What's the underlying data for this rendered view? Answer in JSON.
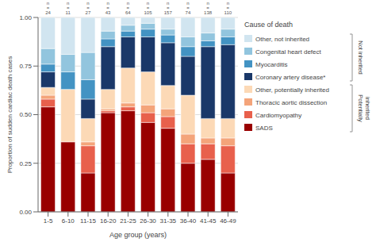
{
  "chart_data": {
    "type": "bar",
    "stacked": true,
    "grid": true,
    "legend": "right",
    "legend_title": "Cause of death",
    "x_label": "Age group (years)",
    "y_label": "Proportion of sudden cardiac death cases",
    "categories": [
      "1-5",
      "6-10",
      "11-15",
      "16-20",
      "21-25",
      "26-30",
      "31-35",
      "36-40",
      "41-45",
      "46-49"
    ],
    "series": [
      {
        "name": "SADS",
        "color": "#990000",
        "values": [
          0.54,
          0.36,
          0.2,
          0.51,
          0.52,
          0.46,
          0.43,
          0.25,
          0.27,
          0.2
        ]
      },
      {
        "name": "Cardiomyopathy",
        "color": "#e8604c",
        "values": [
          0.04,
          0.0,
          0.14,
          0.01,
          0.02,
          0.05,
          0.06,
          0.1,
          0.08,
          0.14
        ]
      },
      {
        "name": "Thoracic aortic dissection",
        "color": "#f4a47a",
        "values": [
          0.02,
          0.0,
          0.02,
          0.01,
          0.02,
          0.04,
          0.04,
          0.05,
          0.03,
          0.04
        ]
      },
      {
        "name": "Other, potentially inherited",
        "color": "#fcd9b6",
        "values": [
          0.04,
          0.27,
          0.12,
          0.1,
          0.18,
          0.17,
          0.12,
          0.2,
          0.1,
          0.1
        ]
      },
      {
        "name": "Coronary artery disease*",
        "color": "#1a3869",
        "values": [
          0.08,
          0.0,
          0.1,
          0.22,
          0.16,
          0.18,
          0.22,
          0.2,
          0.37,
          0.38
        ]
      },
      {
        "name": "Myocarditis",
        "color": "#4393c3",
        "values": [
          0.04,
          0.09,
          0.1,
          0.04,
          0.03,
          0.04,
          0.04,
          0.05,
          0.03,
          0.04
        ]
      },
      {
        "name": "Congenital heart defect",
        "color": "#92c5de",
        "values": [
          0.08,
          0.09,
          0.14,
          0.04,
          0.03,
          0.03,
          0.03,
          0.05,
          0.04,
          0.04
        ]
      },
      {
        "name": "Other, not inherited",
        "color": "#d1e5f0",
        "values": [
          0.16,
          0.19,
          0.18,
          0.07,
          0.04,
          0.03,
          0.06,
          0.1,
          0.08,
          0.06
        ]
      }
    ],
    "ylim": [
      0.0,
      1.0
    ],
    "yticks": [
      {
        "value": 0.0,
        "label": "0.00"
      },
      {
        "value": 0.25,
        "label": "0.25"
      },
      {
        "value": 0.5,
        "label": "0.50"
      },
      {
        "value": 0.75,
        "label": "0.75"
      },
      {
        "value": 1.0,
        "label": "1.00"
      }
    ],
    "annotations": [
      {
        "text": "n = 24",
        "category": "1-5"
      },
      {
        "text": "n = 11",
        "category": "6-10"
      },
      {
        "text": "n = 27",
        "category": "11-15"
      },
      {
        "text": "n = 43",
        "category": "16-20"
      },
      {
        "text": "n = 64",
        "category": "21-25"
      },
      {
        "text": "n = 105",
        "category": "26-30"
      },
      {
        "text": "n = 157",
        "category": "31-35"
      },
      {
        "text": "n = 74",
        "category": "36-40"
      },
      {
        "text": "n = 138",
        "category": "41-45"
      },
      {
        "text": "n = 110",
        "category": "46-49"
      }
    ],
    "legend_groups": [
      {
        "label": "Not inherited",
        "series": [
          "Other, not inherited",
          "Congenital heart defect",
          "Myocarditis",
          "Coronary artery disease*"
        ]
      },
      {
        "label": "Potentially\ninherited",
        "series": [
          "Other, potentially inherited",
          "Thoracic aortic dissection",
          "Cardiomyopathy",
          "SADS"
        ]
      }
    ]
  }
}
